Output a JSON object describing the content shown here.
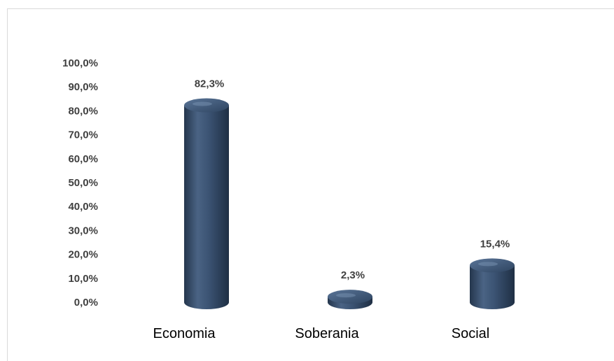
{
  "chart_data": {
    "type": "bar",
    "title": "",
    "xlabel": "",
    "ylabel": "",
    "categories": [
      "Economia",
      "Soberania",
      "Social"
    ],
    "values": [
      82.3,
      2.3,
      15.4
    ],
    "data_labels": [
      "82,3%",
      "2,3%",
      "15,4%"
    ],
    "ylim": [
      0,
      100
    ],
    "y_ticks": [
      0,
      10,
      20,
      30,
      40,
      50,
      60,
      70,
      80,
      90,
      100
    ],
    "y_tick_labels": [
      "0,0%",
      "10,0%",
      "20,0%",
      "30,0%",
      "40,0%",
      "50,0%",
      "60,0%",
      "70,0%",
      "80,0%",
      "90,0%",
      "100,0%"
    ],
    "grid": false,
    "legend": "none",
    "bar_shape": "cylinder",
    "bar_color": "#3b5373"
  }
}
